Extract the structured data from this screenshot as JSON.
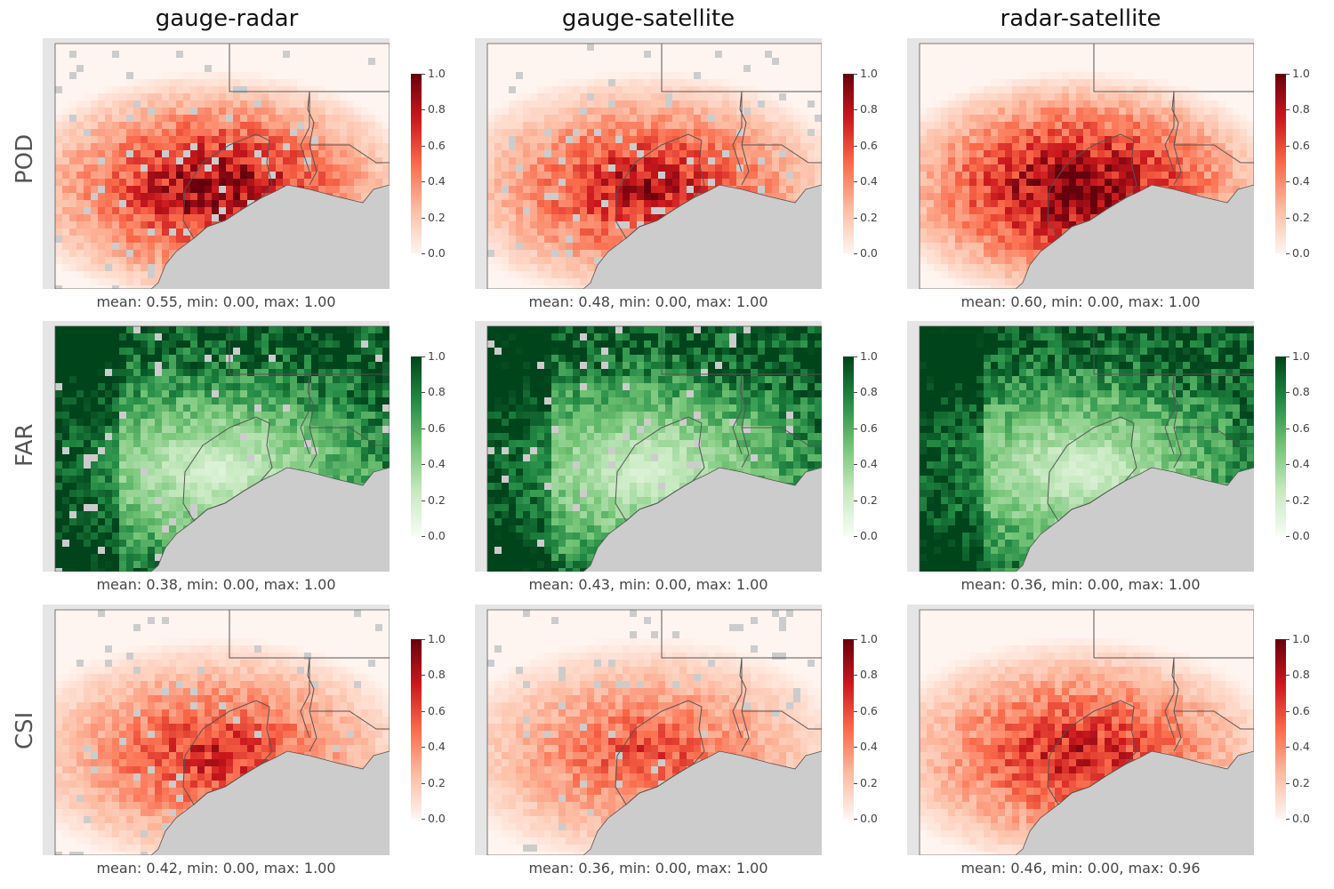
{
  "columns": [
    "gauge-radar",
    "gauge-satellite",
    "radar-satellite"
  ],
  "rows": [
    "POD",
    "FAR",
    "CSI"
  ],
  "colorbar_ticks": [
    "1.0",
    "0.8",
    "0.6",
    "0.4",
    "0.2",
    "0.0"
  ],
  "colormaps": {
    "POD": [
      "#fff5f0",
      "#fcbba1",
      "#fb6a4a",
      "#cb181d",
      "#67000d"
    ],
    "FAR": [
      "#f7fcf5",
      "#c7e9c0",
      "#74c476",
      "#238b45",
      "#00441b"
    ],
    "CSI": [
      "#fff5f0",
      "#fcbba1",
      "#fb6a4a",
      "#cb181d",
      "#67000d"
    ]
  },
  "captions": {
    "POD": [
      "mean: 0.55, min: 0.00, max: 1.00",
      "mean: 0.48, min: 0.00, max: 1.00",
      "mean: 0.60, min: 0.00, max: 1.00"
    ],
    "FAR": [
      "mean: 0.38, min: 0.00, max: 1.00",
      "mean: 0.43, min: 0.00, max: 1.00",
      "mean: 0.36, min: 0.00, max: 1.00"
    ],
    "CSI": [
      "mean: 0.42, min: 0.00, max: 1.00",
      "mean: 0.36, min: 0.00, max: 1.00",
      "mean: 0.46, min: 0.00, max: 0.96"
    ]
  },
  "stats": {
    "POD": [
      {
        "mean": 0.55,
        "min": 0.0,
        "max": 1.0
      },
      {
        "mean": 0.48,
        "min": 0.0,
        "max": 1.0
      },
      {
        "mean": 0.6,
        "min": 0.0,
        "max": 1.0
      }
    ],
    "FAR": [
      {
        "mean": 0.38,
        "min": 0.0,
        "max": 1.0
      },
      {
        "mean": 0.43,
        "min": 0.0,
        "max": 1.0
      },
      {
        "mean": 0.36,
        "min": 0.0,
        "max": 1.0
      }
    ],
    "CSI": [
      {
        "mean": 0.42,
        "min": 0.0,
        "max": 1.0
      },
      {
        "mean": 0.36,
        "min": 0.0,
        "max": 1.0
      },
      {
        "mean": 0.46,
        "min": 0.0,
        "max": 0.96
      }
    ]
  },
  "colors": {
    "no_data": "#cccccc",
    "ocean": "#cccccc",
    "frame": "#e5e5e5",
    "border_line": "#555555"
  }
}
